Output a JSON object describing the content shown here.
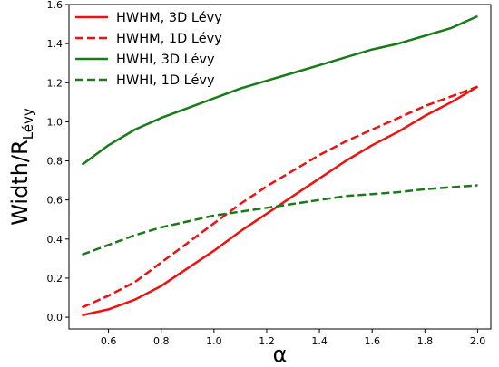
{
  "chart_data": {
    "type": "line",
    "xlabel": "α",
    "ylabel_main": "Width/R",
    "ylabel_sub": "Lévy",
    "xlim": [
      0.45,
      2.05
    ],
    "ylim": [
      -0.06,
      1.6
    ],
    "xticks": [
      0.6,
      0.8,
      1.0,
      1.2,
      1.4,
      1.6,
      1.8,
      2.0
    ],
    "xtick_labels": [
      "0.6",
      "0.8",
      "1.0",
      "1.2",
      "1.4",
      "1.6",
      "1.8",
      "2.0"
    ],
    "yticks": [
      0.0,
      0.2,
      0.4,
      0.6,
      0.8,
      1.0,
      1.2,
      1.4,
      1.6
    ],
    "ytick_labels": [
      "0.0",
      "0.2",
      "0.4",
      "0.6",
      "0.8",
      "1.0",
      "1.2",
      "1.4",
      "1.6"
    ],
    "grid": false,
    "legend_position": "top-left",
    "series": [
      {
        "name": "HWHM, 3D Lévy",
        "color": "#ee1111",
        "dash": "solid",
        "x": [
          0.5,
          0.6,
          0.7,
          0.8,
          0.9,
          1.0,
          1.1,
          1.2,
          1.3,
          1.4,
          1.5,
          1.6,
          1.7,
          1.8,
          1.9,
          2.0
        ],
        "y": [
          0.01,
          0.04,
          0.09,
          0.16,
          0.25,
          0.34,
          0.44,
          0.53,
          0.62,
          0.71,
          0.8,
          0.88,
          0.95,
          1.03,
          1.1,
          1.18
        ]
      },
      {
        "name": "HWHM, 1D Lévy",
        "color": "#ee1111",
        "dash": "dashed",
        "x": [
          0.5,
          0.6,
          0.7,
          0.8,
          0.9,
          1.0,
          1.1,
          1.2,
          1.3,
          1.4,
          1.5,
          1.6,
          1.7,
          1.8,
          1.9,
          2.0
        ],
        "y": [
          0.05,
          0.11,
          0.18,
          0.28,
          0.38,
          0.48,
          0.58,
          0.67,
          0.75,
          0.83,
          0.9,
          0.96,
          1.02,
          1.08,
          1.13,
          1.18
        ]
      },
      {
        "name": "HWHI, 3D Lévy",
        "color": "#1a7a1a",
        "dash": "solid",
        "x": [
          0.5,
          0.6,
          0.7,
          0.8,
          0.9,
          1.0,
          1.1,
          1.2,
          1.3,
          1.4,
          1.5,
          1.6,
          1.7,
          1.8,
          1.9,
          2.0
        ],
        "y": [
          0.78,
          0.88,
          0.96,
          1.02,
          1.07,
          1.12,
          1.17,
          1.21,
          1.25,
          1.29,
          1.33,
          1.37,
          1.4,
          1.44,
          1.48,
          1.54
        ]
      },
      {
        "name": "HWHI, 1D Lévy",
        "color": "#1a7a1a",
        "dash": "dashed",
        "x": [
          0.5,
          0.6,
          0.7,
          0.8,
          0.9,
          1.0,
          1.1,
          1.2,
          1.3,
          1.4,
          1.5,
          1.6,
          1.7,
          1.8,
          1.9,
          2.0
        ],
        "y": [
          0.32,
          0.37,
          0.42,
          0.46,
          0.49,
          0.52,
          0.54,
          0.56,
          0.58,
          0.6,
          0.62,
          0.63,
          0.64,
          0.655,
          0.665,
          0.675
        ]
      }
    ]
  }
}
